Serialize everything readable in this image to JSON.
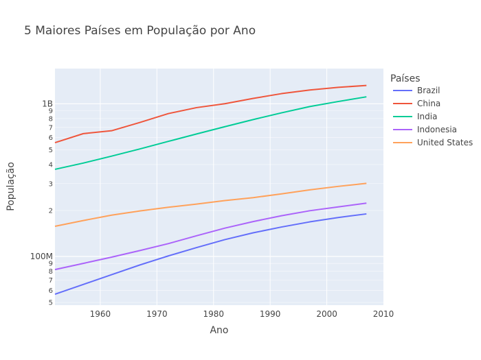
{
  "chart_data": {
    "type": "line",
    "title": "5 Maiores Países em População por Ano",
    "xlabel": "Ano",
    "ylabel": "População",
    "xlim": [
      1952,
      2010
    ],
    "ylog": true,
    "ylim": [
      48000000,
      1700000000
    ],
    "x_ticks": [
      1960,
      1970,
      1980,
      1990,
      2000,
      2010
    ],
    "y_major_ticks": [
      {
        "value": 100000000,
        "label": "100M"
      },
      {
        "value": 1000000000,
        "label": "1B"
      }
    ],
    "y_minor_ticks": [
      {
        "value": 50000000,
        "label": "5"
      },
      {
        "value": 60000000,
        "label": "6"
      },
      {
        "value": 70000000,
        "label": "7"
      },
      {
        "value": 80000000,
        "label": "8"
      },
      {
        "value": 90000000,
        "label": "9"
      },
      {
        "value": 200000000,
        "label": "2"
      },
      {
        "value": 300000000,
        "label": "3"
      },
      {
        "value": 400000000,
        "label": "4"
      },
      {
        "value": 500000000,
        "label": "5"
      },
      {
        "value": 600000000,
        "label": "6"
      },
      {
        "value": 700000000,
        "label": "7"
      },
      {
        "value": 800000000,
        "label": "8"
      },
      {
        "value": 900000000,
        "label": "9"
      }
    ],
    "grid": true,
    "legend_title": "Países",
    "legend_position": "right",
    "x": [
      1952,
      1957,
      1962,
      1967,
      1972,
      1977,
      1982,
      1987,
      1992,
      1997,
      2002,
      2007
    ],
    "series": [
      {
        "name": "Brazil",
        "color": "#636efa",
        "values": [
          56600000,
          65600000,
          76000000,
          88000000,
          100800000,
          114300000,
          128900000,
          142900000,
          155900000,
          168500000,
          179900000,
          190000000
        ]
      },
      {
        "name": "China",
        "color": "#ef553b",
        "values": [
          556300000,
          637400000,
          665800000,
          754600000,
          862000000,
          943500000,
          1000300000,
          1084000000,
          1164970000,
          1230075000,
          1280400000,
          1318683000
        ]
      },
      {
        "name": "India",
        "color": "#00cc96",
        "values": [
          372000000,
          409000000,
          454000000,
          506000000,
          567000000,
          634000000,
          708000000,
          788000000,
          872000000,
          959000000,
          1034170000,
          1110396000
        ]
      },
      {
        "name": "Indonesia",
        "color": "#ab63fa",
        "values": [
          82100000,
          90100000,
          99000000,
          109300000,
          121300000,
          136700000,
          153300000,
          169300000,
          184800000,
          199300000,
          211100000,
          223500000
        ]
      },
      {
        "name": "United States",
        "color": "#ffa15a",
        "values": [
          157600000,
          171900000,
          186500000,
          198700000,
          209900000,
          220200000,
          232200000,
          242800000,
          256900000,
          272900000,
          287700000,
          301100000
        ]
      }
    ]
  }
}
